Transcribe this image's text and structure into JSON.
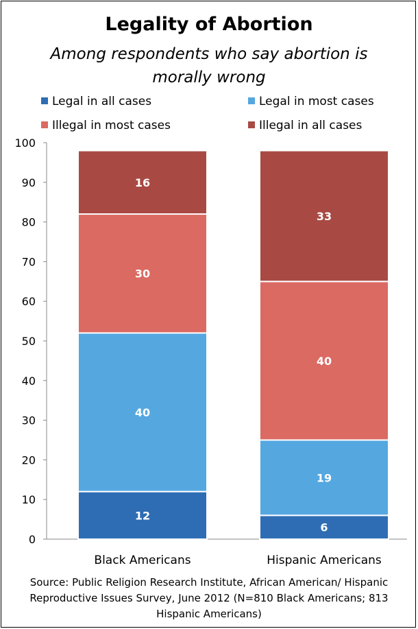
{
  "chart_data": {
    "type": "bar",
    "stacked": true,
    "title": "Legality of Abortion",
    "subtitle": "Among respondents who say abortion is morally wrong",
    "categories": [
      "Black Americans",
      "Hispanic Americans"
    ],
    "series": [
      {
        "name": "Legal in all cases",
        "color": "#2e6db4",
        "values": [
          12,
          6
        ]
      },
      {
        "name": "Legal in most cases",
        "color": "#55a7e0",
        "values": [
          40,
          19
        ]
      },
      {
        "name": "Illegal in most cases",
        "color": "#db6a62",
        "values": [
          30,
          40
        ]
      },
      {
        "name": "Illegal in all cases",
        "color": "#a84a43",
        "values": [
          16,
          33
        ]
      }
    ],
    "ylim": [
      0,
      100
    ],
    "yticks": [
      "0",
      "10",
      "20",
      "30",
      "40",
      "50",
      "60",
      "70",
      "80",
      "90",
      "100"
    ],
    "legend_position": "top",
    "grid": false
  },
  "source": "Source: Public Religion Research Institute, African American/ Hispanic Reproductive Issues Survey, June 2012 (N=810 Black Americans; 813 Hispanic Americans)"
}
